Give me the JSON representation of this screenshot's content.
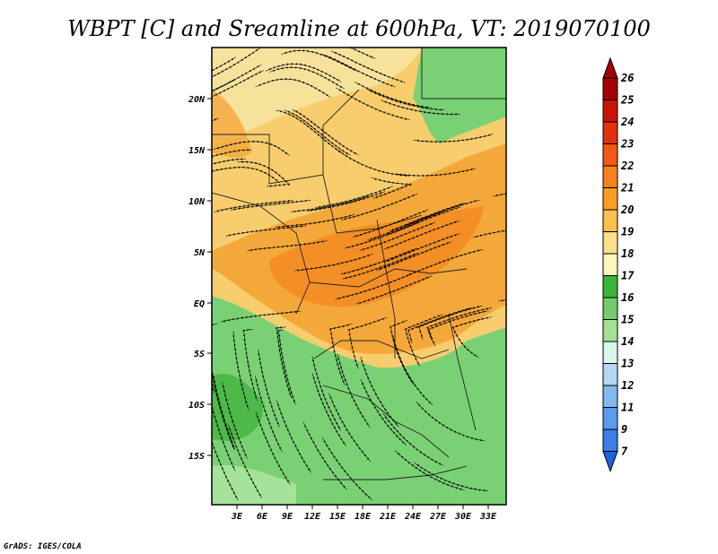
{
  "title": "WBPT [C] and Sreamline at 600hPa, VT: 2019070100",
  "footer": "GrADS: IGES/COLA",
  "map": {
    "lat_labels": [
      "20N",
      "15N",
      "10N",
      "5N",
      "EQ",
      "5S",
      "10S",
      "15S"
    ],
    "lon_labels": [
      "3E",
      "6E",
      "9E",
      "12E",
      "15E",
      "18E",
      "21E",
      "24E",
      "27E",
      "30E",
      "33E"
    ],
    "colors": {
      "very_warm": "#f07a14",
      "warm": "#f5a83a",
      "mild": "#f7cd6e",
      "light": "#f7e29c",
      "green_dark": "#4cb948",
      "green": "#79d174",
      "green_light": "#a6e39a"
    }
  },
  "colorbar": {
    "labels": [
      "26",
      "25",
      "24",
      "23",
      "22",
      "21",
      "20",
      "19",
      "18",
      "17",
      "16",
      "15",
      "14",
      "13",
      "12",
      "11",
      "9",
      "7"
    ],
    "colors": [
      "#a50000",
      "#c8140a",
      "#e0320f",
      "#f05a14",
      "#f5821e",
      "#fa9d28",
      "#fbc050",
      "#fce08c",
      "#fdf5be",
      "#3cb43c",
      "#73cd6e",
      "#a5e194",
      "#dcf5ec",
      "#b4d7f5",
      "#82b9f0",
      "#5a9beb",
      "#3c7de6",
      "#1e64dc"
    ]
  }
}
